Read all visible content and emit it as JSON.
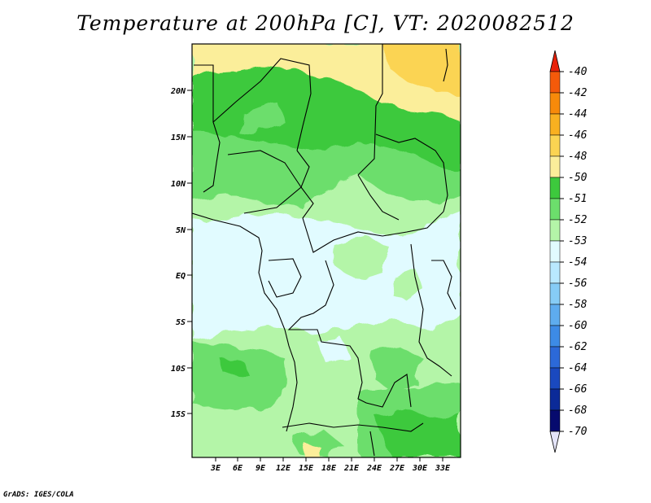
{
  "title": "Temperature at 200hPa [C], VT: 2020082512",
  "credit": "GrADS: IGES/COLA",
  "map": {
    "lat_labels": [
      "20N",
      "15N",
      "10N",
      "5N",
      "EQ",
      "5S",
      "10S",
      "15S"
    ],
    "lon_labels": [
      "3E",
      "6E",
      "9E",
      "12E",
      "15E",
      "18E",
      "21E",
      "24E",
      "27E",
      "30E",
      "33E"
    ]
  },
  "colorbar": {
    "levels": [
      "-40",
      "-42",
      "-44",
      "-46",
      "-48",
      "-50",
      "-51",
      "-52",
      "-53",
      "-54",
      "-56",
      "-58",
      "-60",
      "-62",
      "-64",
      "-66",
      "-68",
      "-70"
    ],
    "colors": [
      "#f0220a",
      "#f45a0a",
      "#f78a0a",
      "#f9b020",
      "#fbd452",
      "#fbee9a",
      "#3dc93d",
      "#6cde6c",
      "#b4f5a8",
      "#e1fbff",
      "#b9e9ff",
      "#86ccf6",
      "#5eacef",
      "#3d8be6",
      "#2c69d8",
      "#1a49bf",
      "#0b2a98",
      "#060a6e"
    ],
    "top_cap": "#e8220a",
    "bottom_cap": "#e4e4f8"
  }
}
